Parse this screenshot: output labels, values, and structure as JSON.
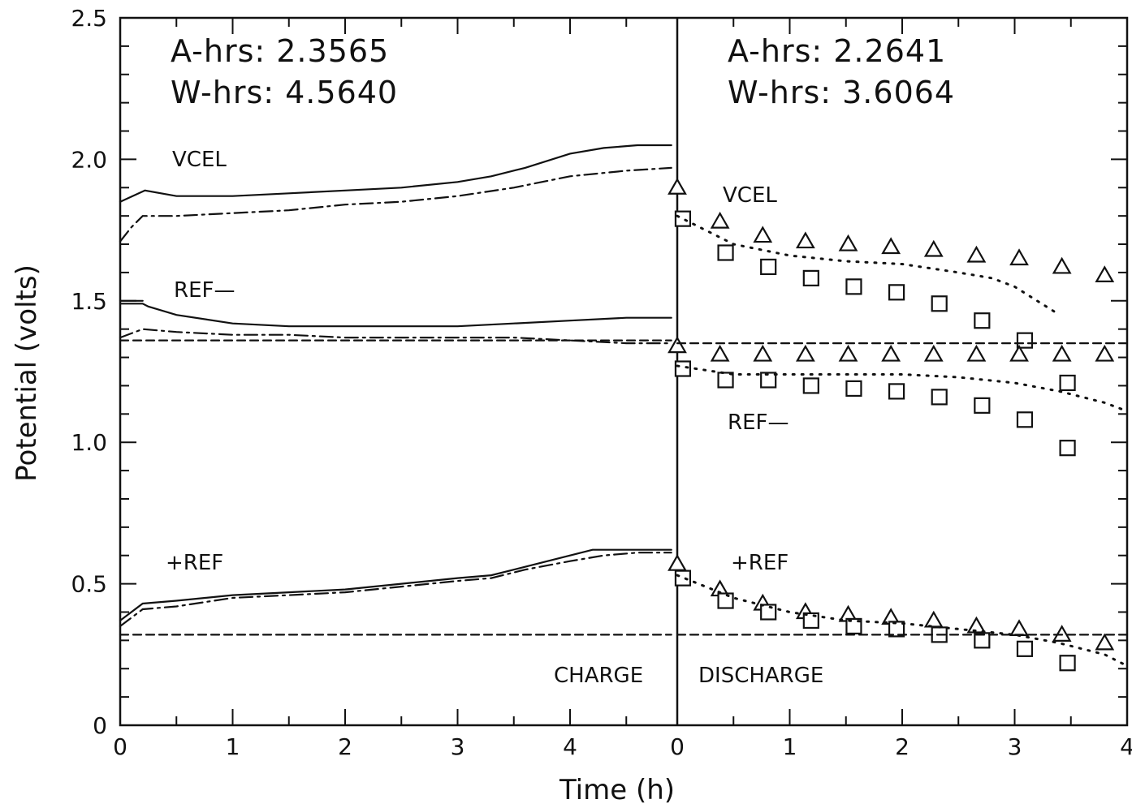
{
  "chart_data": {
    "type": "line",
    "ylabel": "Potential (volts)",
    "xlabel": "Time (h)",
    "ylim": [
      0,
      2.5
    ],
    "y_ticks": [
      "0",
      "0.5",
      "1.0",
      "1.5",
      "2.0",
      "2.5"
    ],
    "panels": [
      {
        "name": "CHARGE",
        "xlim": [
          0,
          4.9
        ],
        "x_ticks": [
          "0",
          "1",
          "2",
          "3",
          "4"
        ],
        "annotations": {
          "ahrs": "A-hrs: 2.3565",
          "whrs": "W-hrs: 4.5640"
        },
        "curve_labels": {
          "vcel": "VCEL",
          "ref": "REF—",
          "pref": "+REF"
        },
        "phase_label": "CHARGE",
        "series": [
          {
            "style": "solid",
            "x": [
              0,
              0.22,
              0.5,
              1.0,
              1.5,
              2.0,
              2.5,
              3.0,
              3.3,
              3.6,
              4.0,
              4.3,
              4.6,
              4.9
            ],
            "y": [
              1.85,
              1.89,
              1.87,
              1.87,
              1.88,
              1.89,
              1.9,
              1.92,
              1.94,
              1.97,
              2.02,
              2.04,
              2.05,
              2.05
            ]
          },
          {
            "style": "dashdot",
            "x": [
              0,
              0.1,
              0.2,
              0.5,
              1.0,
              1.5,
              2.0,
              2.5,
              3.0,
              3.5,
              4.0,
              4.5,
              4.9
            ],
            "y": [
              1.71,
              1.76,
              1.8,
              1.8,
              1.81,
              1.82,
              1.84,
              1.85,
              1.87,
              1.9,
              1.94,
              1.96,
              1.97
            ]
          },
          {
            "style": "solid",
            "x": [
              0,
              0.2,
              0.25,
              0.5,
              1.0,
              1.5,
              2.0,
              2.5,
              3.0,
              3.5,
              4.0,
              4.5,
              4.9
            ],
            "y": [
              1.49,
              1.49,
              1.48,
              1.45,
              1.42,
              1.41,
              1.41,
              1.41,
              1.41,
              1.42,
              1.43,
              1.44,
              1.44
            ]
          },
          {
            "style": "solid",
            "x": [
              0,
              0.2
            ],
            "y": [
              1.5,
              1.5
            ]
          },
          {
            "style": "dashdot",
            "x": [
              0,
              0.2,
              0.5,
              1.0,
              1.5,
              2.0,
              2.5,
              3.0,
              3.5,
              4.0,
              4.5,
              4.9
            ],
            "y": [
              1.37,
              1.4,
              1.39,
              1.38,
              1.38,
              1.37,
              1.37,
              1.37,
              1.37,
              1.36,
              1.35,
              1.35
            ]
          },
          {
            "style": "solid",
            "x": [
              0,
              0.2,
              0.5,
              1.0,
              1.5,
              2.0,
              2.5,
              3.0,
              3.3,
              3.6,
              4.0,
              4.2,
              4.6,
              4.9
            ],
            "y": [
              0.37,
              0.43,
              0.44,
              0.46,
              0.47,
              0.48,
              0.5,
              0.52,
              0.53,
              0.56,
              0.6,
              0.62,
              0.62,
              0.62
            ]
          },
          {
            "style": "dashdot",
            "x": [
              0,
              0.2,
              0.5,
              1.0,
              1.5,
              2.0,
              2.5,
              3.0,
              3.3,
              3.6,
              4.0,
              4.3,
              4.6,
              4.9
            ],
            "y": [
              0.35,
              0.41,
              0.42,
              0.45,
              0.46,
              0.47,
              0.49,
              0.51,
              0.52,
              0.55,
              0.58,
              0.6,
              0.61,
              0.61
            ]
          },
          {
            "style": "dashed",
            "x": [
              0,
              4.9
            ],
            "y": [
              1.36,
              1.36
            ]
          },
          {
            "style": "dashed",
            "x": [
              0,
              4.9
            ],
            "y": [
              0.32,
              0.32
            ]
          }
        ]
      },
      {
        "name": "DISCHARGE",
        "xlim": [
          0,
          4
        ],
        "x_ticks": [
          "0",
          "1",
          "2",
          "3",
          "4"
        ],
        "annotations": {
          "ahrs": "A-hrs: 2.2641",
          "whrs": "W-hrs: 3.6064"
        },
        "curve_labels": {
          "vcel": "VCEL",
          "ref": "REF—",
          "pref": "+REF"
        },
        "phase_label": "DISCHARGE",
        "series": [
          {
            "style": "triangle",
            "x": [
              0,
              0.38,
              0.76,
              1.14,
              1.52,
              1.9,
              2.28,
              2.66,
              3.04,
              3.42,
              3.8
            ],
            "y": [
              1.9,
              1.78,
              1.73,
              1.71,
              1.7,
              1.69,
              1.68,
              1.66,
              1.65,
              1.62,
              1.59
            ]
          },
          {
            "style": "square",
            "x": [
              0.05,
              0.43,
              0.81,
              1.19,
              1.57,
              1.95,
              2.33,
              2.71,
              3.09,
              3.47
            ],
            "y": [
              1.79,
              1.67,
              1.62,
              1.58,
              1.55,
              1.53,
              1.49,
              1.43,
              1.36,
              1.21
            ]
          },
          {
            "style": "dotted",
            "x": [
              0,
              0.5,
              1.0,
              1.5,
              2.0,
              2.5,
              2.8,
              3.0,
              3.2,
              3.4
            ],
            "y": [
              1.8,
              1.7,
              1.66,
              1.64,
              1.63,
              1.6,
              1.58,
              1.55,
              1.5,
              1.45
            ]
          },
          {
            "style": "triangle",
            "x": [
              0,
              0.38,
              0.76,
              1.14,
              1.52,
              1.9,
              2.28,
              2.66,
              3.04,
              3.42,
              3.8
            ],
            "y": [
              1.34,
              1.31,
              1.31,
              1.31,
              1.31,
              1.31,
              1.31,
              1.31,
              1.31,
              1.31,
              1.31
            ]
          },
          {
            "style": "square",
            "x": [
              0.05,
              0.43,
              0.81,
              1.19,
              1.57,
              1.95,
              2.33,
              2.71,
              3.09,
              3.47
            ],
            "y": [
              1.26,
              1.22,
              1.22,
              1.2,
              1.19,
              1.18,
              1.16,
              1.13,
              1.08,
              0.98
            ]
          },
          {
            "style": "dotted",
            "x": [
              0,
              0.5,
              1.0,
              1.5,
              2.0,
              2.5,
              3.0,
              3.4,
              3.8,
              4.0
            ],
            "y": [
              1.27,
              1.24,
              1.24,
              1.24,
              1.24,
              1.23,
              1.21,
              1.18,
              1.14,
              1.11
            ]
          },
          {
            "style": "triangle",
            "x": [
              0,
              0.38,
              0.76,
              1.14,
              1.52,
              1.9,
              2.28,
              2.66,
              3.04,
              3.42,
              3.8
            ],
            "y": [
              0.57,
              0.48,
              0.43,
              0.4,
              0.39,
              0.38,
              0.37,
              0.35,
              0.34,
              0.32,
              0.29
            ]
          },
          {
            "style": "square",
            "x": [
              0.05,
              0.43,
              0.81,
              1.19,
              1.57,
              1.95,
              2.33,
              2.71,
              3.09,
              3.47
            ],
            "y": [
              0.52,
              0.44,
              0.4,
              0.37,
              0.35,
              0.34,
              0.32,
              0.3,
              0.27,
              0.22
            ]
          },
          {
            "style": "dotted",
            "x": [
              0,
              0.5,
              1.0,
              1.5,
              2.0,
              2.5,
              3.0,
              3.4,
              3.8,
              4.0
            ],
            "y": [
              0.53,
              0.45,
              0.4,
              0.37,
              0.36,
              0.34,
              0.32,
              0.29,
              0.25,
              0.21
            ]
          },
          {
            "style": "dashed",
            "x": [
              0,
              4
            ],
            "y": [
              1.35,
              1.35
            ]
          },
          {
            "style": "dashed",
            "x": [
              0,
              4
            ],
            "y": [
              0.32,
              0.32
            ]
          }
        ]
      }
    ]
  }
}
